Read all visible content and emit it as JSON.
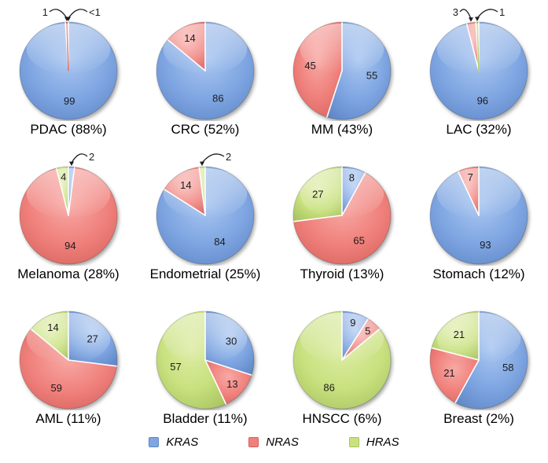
{
  "figure": {
    "description": "Twelve 3D-style pie charts showing RAS isoform mutation distribution (KRAS vs NRAS vs HRAS) per tumor type"
  },
  "legend": {
    "items": [
      {
        "label": "KRAS",
        "color": "#7FA6E2"
      },
      {
        "label": "NRAS",
        "color": "#F0807B"
      },
      {
        "label": "HRAS",
        "color": "#C9E17F"
      }
    ]
  },
  "chart_data": {
    "type": "pie",
    "series_names": [
      "KRAS",
      "NRAS",
      "HRAS"
    ],
    "colors": {
      "KRAS": {
        "base": "#7FA6E2",
        "light": "#A9C6F0",
        "dark": "#5E86C6"
      },
      "NRAS": {
        "base": "#F0807B",
        "light": "#F7A9A5",
        "dark": "#D5625E"
      },
      "HRAS": {
        "base": "#C9E17F",
        "light": "#DDECA6",
        "dark": "#A8C361"
      }
    },
    "layout": {
      "start_angle_deg": 0,
      "direction": "clockwise",
      "grid": "4x3",
      "legend_position": "bottom"
    },
    "pies": [
      {
        "title": "PDAC (88%)",
        "values": {
          "KRAS": 99,
          "NRAS": 1,
          "HRAS": 0
        },
        "callouts": [
          {
            "text": "1",
            "side": "left",
            "target_angle": 358.2
          },
          {
            "text": "<1",
            "side": "right",
            "target_angle": 360
          }
        ]
      },
      {
        "title": "CRC (52%)",
        "values": {
          "KRAS": 86,
          "NRAS": 14,
          "HRAS": 0
        },
        "callouts": []
      },
      {
        "title": "MM (43%)",
        "values": {
          "KRAS": 55,
          "NRAS": 45,
          "HRAS": 0
        },
        "callouts": []
      },
      {
        "title": "LAC (32%)",
        "values": {
          "KRAS": 96,
          "NRAS": 3,
          "HRAS": 1
        },
        "callouts": [
          {
            "text": "3",
            "side": "left",
            "target_angle": 351
          },
          {
            "text": "1",
            "side": "right",
            "target_angle": 358.2
          }
        ]
      },
      {
        "title": "Melanoma (28%)",
        "values": {
          "KRAS": 2,
          "NRAS": 94,
          "HRAS": 4
        },
        "callouts": [
          {
            "text": "2",
            "side": "right",
            "target_angle": 3.6
          }
        ]
      },
      {
        "title": "Endometrial (25%)",
        "values": {
          "KRAS": 84,
          "NRAS": 14,
          "HRAS": 2
        },
        "callouts": [
          {
            "text": "2",
            "side": "right",
            "target_angle": 356.4
          }
        ]
      },
      {
        "title": "Thyroid (13%)",
        "values": {
          "KRAS": 8,
          "NRAS": 65,
          "HRAS": 27
        },
        "callouts": []
      },
      {
        "title": "Stomach (12%)",
        "values": {
          "KRAS": 93,
          "NRAS": 7,
          "HRAS": 0
        },
        "callouts": []
      },
      {
        "title": "AML (11%)",
        "values": {
          "KRAS": 27,
          "NRAS": 59,
          "HRAS": 14
        },
        "callouts": []
      },
      {
        "title": "Bladder (11%)",
        "values": {
          "KRAS": 30,
          "NRAS": 13,
          "HRAS": 57
        },
        "callouts": []
      },
      {
        "title": "HNSCC (6%)",
        "values": {
          "KRAS": 9,
          "NRAS": 5,
          "HRAS": 86
        },
        "callouts": []
      },
      {
        "title": "Breast (2%)",
        "values": {
          "KRAS": 58,
          "NRAS": 21,
          "HRAS": 21
        },
        "callouts": []
      }
    ]
  }
}
